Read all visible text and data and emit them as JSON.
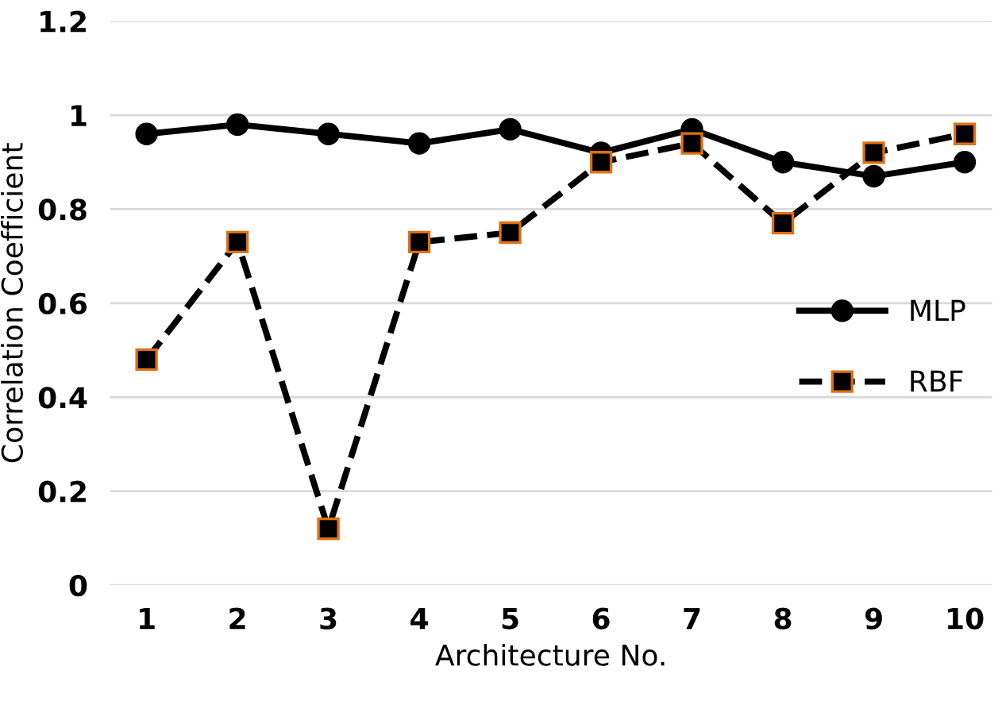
{
  "chart_data": {
    "type": "line",
    "xlabel": "Architecture No.",
    "ylabel": "Correlation Coefficient",
    "categories": [
      "1",
      "2",
      "3",
      "4",
      "5",
      "6",
      "7",
      "8",
      "9",
      "10"
    ],
    "series": [
      {
        "name": "MLP",
        "color": "#000000",
        "marker": "circle",
        "line_style": "solid",
        "values": [
          0.96,
          0.98,
          0.96,
          0.94,
          0.97,
          0.92,
          0.97,
          0.9,
          0.87,
          0.9
        ]
      },
      {
        "name": "RBF",
        "color": "#000000",
        "marker": "square",
        "line_style": "dashed",
        "values": [
          0.48,
          0.73,
          0.12,
          0.73,
          0.75,
          0.9,
          0.94,
          0.77,
          0.92,
          0.96
        ]
      }
    ],
    "ylim": [
      0,
      1.2
    ],
    "yticks": [
      0,
      0.2,
      0.4,
      0.6,
      0.8,
      1,
      1.2
    ],
    "grid": "y",
    "legend": "right"
  }
}
